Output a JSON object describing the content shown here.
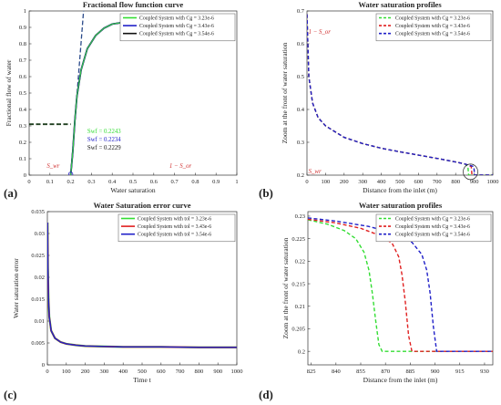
{
  "figure": {
    "panels": [
      {
        "label": "(a)"
      },
      {
        "label": "(b)"
      },
      {
        "label": "(c)"
      },
      {
        "label": "(d)"
      }
    ]
  },
  "colors": {
    "green": "#33dd33",
    "red": "#e02020",
    "blue": "#2020c8",
    "black": "#111111",
    "darkgreen": "#1f3f1f",
    "annot_red": "#d03030"
  },
  "chart_data": [
    {
      "type": "line",
      "title": "Fractional flow function curve",
      "xlabel": "Water saturation",
      "ylabel": "Fractional flow of water",
      "xlim": [
        0,
        1
      ],
      "ylim": [
        0,
        1
      ],
      "xticks": [
        "0",
        "0.1",
        "0.2",
        "0.3",
        "0.4",
        "0.5",
        "0.6",
        "0.7",
        "0.8",
        "0.9",
        "1"
      ],
      "yticks": [
        "0",
        "0.1",
        "0.2",
        "0.3",
        "0.4",
        "0.5",
        "0.6",
        "0.7",
        "0.8",
        "0.9",
        "1"
      ],
      "legend_position": "top-right",
      "series": [
        {
          "name": "Coupled System with Cg = 3.23e-6",
          "color": "#33dd33",
          "x": [
            0.2,
            0.21,
            0.22,
            0.23,
            0.25,
            0.28,
            0.32,
            0.36,
            0.4,
            0.45,
            0.5
          ],
          "y": [
            0,
            0.14,
            0.33,
            0.48,
            0.64,
            0.77,
            0.85,
            0.895,
            0.92,
            0.93,
            0.94
          ]
        },
        {
          "name": "Coupled System with Cg = 3.43e-6",
          "color": "#2020c8",
          "x": [
            0.2,
            0.21,
            0.22,
            0.23,
            0.25,
            0.28,
            0.32,
            0.36,
            0.4,
            0.45,
            0.5
          ],
          "y": [
            0,
            0.14,
            0.33,
            0.48,
            0.64,
            0.77,
            0.85,
            0.895,
            0.92,
            0.93,
            0.94
          ]
        },
        {
          "name": "Coupled System with Cg = 3.54e-6",
          "color": "#111111",
          "x": [
            0.2,
            0.21,
            0.22,
            0.23,
            0.25,
            0.28,
            0.32,
            0.36,
            0.4,
            0.45,
            0.5
          ],
          "y": [
            0,
            0.14,
            0.33,
            0.48,
            0.64,
            0.77,
            0.85,
            0.895,
            0.92,
            0.93,
            0.94
          ]
        }
      ],
      "annotations": [
        {
          "text": "Swf = 0.2243",
          "color": "#33dd33"
        },
        {
          "text": "Swf = 0.2234",
          "color": "#2020c8"
        },
        {
          "text": "Swf = 0.2229",
          "color": "#111111"
        },
        {
          "text": "S_wr",
          "color": "#d03030"
        },
        {
          "text": "1 − S_or",
          "color": "#d03030"
        }
      ],
      "fractional_flow_level": 0.31
    },
    {
      "type": "line",
      "title": "Water saturation profiles",
      "xlabel": "Distance from the inlet (m)",
      "ylabel": "Zoom at the front of water saturation",
      "xlim": [
        0,
        1000
      ],
      "ylim": [
        0.2,
        0.7
      ],
      "xticks": [
        "0",
        "100",
        "200",
        "300",
        "400",
        "500",
        "600",
        "700",
        "800",
        "900",
        "1000"
      ],
      "yticks": [
        "0.2",
        "0.3",
        "0.4",
        "0.5",
        "0.6",
        "0.7"
      ],
      "legend_position": "top-right",
      "series": [
        {
          "name": "Coupled System with Cg = 3.23e-6",
          "color": "#33dd33",
          "dashed": true,
          "x": [
            0,
            10,
            30,
            60,
            100,
            200,
            300,
            400,
            500,
            600,
            700,
            800,
            850,
            866,
            870,
            1000
          ],
          "y": [
            0.69,
            0.5,
            0.42,
            0.375,
            0.35,
            0.315,
            0.296,
            0.282,
            0.271,
            0.261,
            0.251,
            0.24,
            0.234,
            0.226,
            0.2,
            0.2
          ]
        },
        {
          "name": "Coupled System with Cg = 3.43e-6",
          "color": "#e02020",
          "dashed": true,
          "x": [
            0,
            10,
            30,
            60,
            100,
            200,
            300,
            400,
            500,
            600,
            700,
            800,
            850,
            884,
            888,
            1000
          ],
          "y": [
            0.69,
            0.5,
            0.42,
            0.375,
            0.35,
            0.315,
            0.296,
            0.282,
            0.271,
            0.261,
            0.251,
            0.24,
            0.234,
            0.226,
            0.2,
            0.2
          ]
        },
        {
          "name": "Coupled System with Cg = 3.54e-6",
          "color": "#2020c8",
          "dashed": true,
          "x": [
            0,
            10,
            30,
            60,
            100,
            200,
            300,
            400,
            500,
            600,
            700,
            800,
            850,
            898,
            902,
            1000
          ],
          "y": [
            0.69,
            0.5,
            0.42,
            0.375,
            0.35,
            0.315,
            0.296,
            0.282,
            0.271,
            0.261,
            0.251,
            0.24,
            0.234,
            0.226,
            0.2,
            0.2
          ]
        }
      ],
      "annotations": [
        {
          "text": "1 − S_or",
          "color": "#d03030"
        },
        {
          "text": "S_wr",
          "color": "#d03030"
        }
      ]
    },
    {
      "type": "line",
      "title": "Water Saturation error curve",
      "xlabel": "Time t",
      "ylabel": "Water saturation error",
      "xlim": [
        0,
        1000
      ],
      "ylim": [
        0,
        0.035
      ],
      "xticks": [
        "0",
        "100",
        "200",
        "300",
        "400",
        "500",
        "600",
        "700",
        "800",
        "900",
        "1000"
      ],
      "yticks": [
        "0",
        "0.005",
        "0.01",
        "0.015",
        "0.02",
        "0.025",
        "0.03",
        "0.035"
      ],
      "legend_position": "top-right",
      "series": [
        {
          "name": "Coupled System with tol = 3.23e-6",
          "color": "#33dd33",
          "x": [
            1,
            3,
            6,
            10,
            20,
            40,
            70,
            100,
            150,
            200,
            300,
            400,
            600,
            800,
            1000
          ],
          "y": [
            0.0325,
            0.022,
            0.015,
            0.011,
            0.0078,
            0.0061,
            0.0052,
            0.0048,
            0.0045,
            0.0043,
            0.0042,
            0.0041,
            0.0041,
            0.004,
            0.004
          ]
        },
        {
          "name": "Coupled System with tol = 3.43e-6",
          "color": "#e02020",
          "x": [
            1,
            3,
            6,
            10,
            20,
            40,
            70,
            100,
            150,
            200,
            300,
            400,
            600,
            800,
            1000
          ],
          "y": [
            0.0325,
            0.022,
            0.015,
            0.011,
            0.0078,
            0.0061,
            0.0052,
            0.0048,
            0.0045,
            0.0043,
            0.0042,
            0.0041,
            0.0041,
            0.004,
            0.004
          ]
        },
        {
          "name": "Coupled System with tol = 3.54e-6",
          "color": "#2020c8",
          "x": [
            1,
            3,
            6,
            10,
            20,
            40,
            70,
            100,
            150,
            200,
            300,
            400,
            600,
            800,
            1000
          ],
          "y": [
            0.0325,
            0.022,
            0.015,
            0.011,
            0.0078,
            0.0061,
            0.0052,
            0.0048,
            0.0045,
            0.0043,
            0.0042,
            0.0041,
            0.0041,
            0.004,
            0.004
          ]
        }
      ]
    },
    {
      "type": "line",
      "title": "Water saturation profiles",
      "xlabel": "Distance from the inlet (m)",
      "ylabel": "Zoom at the front of water saturation",
      "xlim": [
        823,
        935
      ],
      "ylim": [
        0.197,
        0.231
      ],
      "xticks": [
        "825",
        "840",
        "855",
        "870",
        "885",
        "900",
        "915",
        "930"
      ],
      "yticks": [
        "0.2",
        "0.205",
        "0.21",
        "0.215",
        "0.22",
        "0.225",
        "0.23"
      ],
      "legend_position": "top-right",
      "series": [
        {
          "name": "Coupled System with Cg = 3.23e-6",
          "color": "#33dd33",
          "dashed": true,
          "x": [
            823,
            835,
            845,
            852,
            857,
            860,
            862,
            864,
            866,
            868,
            935
          ],
          "y": [
            0.2292,
            0.2282,
            0.2268,
            0.225,
            0.222,
            0.218,
            0.213,
            0.207,
            0.2015,
            0.2,
            0.2
          ]
        },
        {
          "name": "Coupled System with Cg = 3.43e-6",
          "color": "#e02020",
          "dashed": true,
          "x": [
            823,
            840,
            855,
            866,
            874,
            878,
            880,
            882,
            884,
            886,
            935
          ],
          "y": [
            0.2293,
            0.2285,
            0.2273,
            0.2258,
            0.224,
            0.221,
            0.217,
            0.211,
            0.2035,
            0.2,
            0.2
          ]
        },
        {
          "name": "Coupled System with Cg = 3.54e-6",
          "color": "#2020c8",
          "dashed": true,
          "x": [
            823,
            840,
            860,
            875,
            886,
            892,
            895,
            897,
            899,
            901,
            935
          ],
          "y": [
            0.2296,
            0.2289,
            0.2277,
            0.2262,
            0.2242,
            0.2215,
            0.218,
            0.213,
            0.2055,
            0.2,
            0.2
          ]
        }
      ]
    }
  ]
}
